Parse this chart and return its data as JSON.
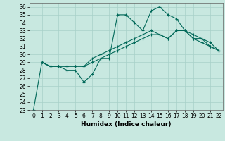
{
  "title": "",
  "xlabel": "Humidex (Indice chaleur)",
  "bg_color": "#c8e8e0",
  "grid_color": "#a8d0c8",
  "line_color": "#006858",
  "xlim": [
    -0.5,
    22.5
  ],
  "ylim": [
    23,
    36.5
  ],
  "yticks": [
    23,
    24,
    25,
    26,
    27,
    28,
    29,
    30,
    31,
    32,
    33,
    34,
    35,
    36
  ],
  "xticks": [
    0,
    1,
    2,
    3,
    4,
    5,
    6,
    7,
    8,
    9,
    10,
    11,
    12,
    13,
    14,
    15,
    16,
    17,
    18,
    19,
    20,
    21,
    22
  ],
  "line1_x": [
    0,
    1,
    2,
    3,
    4,
    5,
    6,
    7,
    8,
    9,
    10,
    11,
    12,
    13,
    14,
    15,
    16,
    17,
    18,
    19,
    20,
    21,
    22
  ],
  "line1_y": [
    23,
    29,
    28.5,
    28.5,
    28,
    28,
    26.5,
    27.5,
    29.5,
    29.5,
    35,
    35,
    34,
    33,
    35.5,
    36,
    35,
    34.5,
    33,
    32,
    31.5,
    31,
    30.5
  ],
  "line2_x": [
    1,
    2,
    3,
    4,
    5,
    6,
    7,
    8,
    9,
    10,
    11,
    12,
    13,
    14,
    15,
    16,
    17,
    18,
    19,
    20,
    21,
    22
  ],
  "line2_y": [
    29,
    28.5,
    28.5,
    28.5,
    28.5,
    28.5,
    29.5,
    30,
    30.5,
    31,
    31.5,
    32,
    32.5,
    33,
    32.5,
    32,
    33,
    33,
    32.5,
    32,
    31.5,
    30.5
  ],
  "line3_x": [
    1,
    2,
    3,
    4,
    5,
    6,
    7,
    8,
    9,
    10,
    11,
    12,
    13,
    14,
    15,
    16,
    17,
    18,
    19,
    20,
    21,
    22
  ],
  "line3_y": [
    29,
    28.5,
    28.5,
    28.5,
    28.5,
    28.5,
    29,
    29.5,
    30,
    30.5,
    31,
    31.5,
    32,
    32.5,
    32.5,
    32,
    33,
    33,
    32,
    32,
    31,
    30.5
  ],
  "tick_fontsize": 5.5,
  "xlabel_fontsize": 6.5
}
